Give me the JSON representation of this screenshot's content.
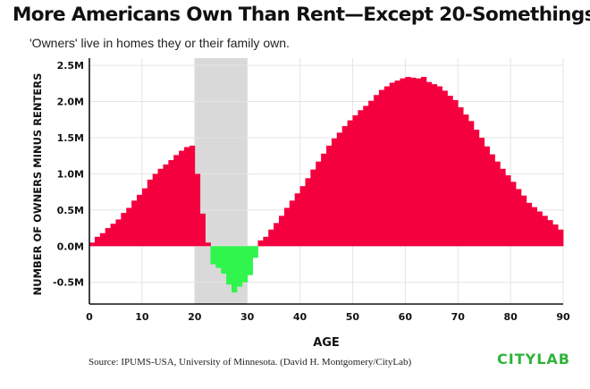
{
  "title": "More Americans Own Than Rent—Except 20-Somethings",
  "subtitle": "'Owners' live in homes they or their family own.",
  "source": "Source: IPUMS-USA, University of Minnesota. (David H. Montgomery/CityLab)",
  "logo": "CITYLAB",
  "colors": {
    "positive": "#f5003f",
    "negative": "#2ff54c",
    "highlight_band": "#d9d9d9",
    "grid": "#e4e4e4",
    "axis": "#111111",
    "logo": "#2fb33a"
  },
  "chart_data": {
    "type": "bar",
    "xlabel": "AGE",
    "ylabel": "NUMBER OF OWNERS MINUS RENTERS",
    "xlim": [
      0,
      90
    ],
    "ylim": [
      -0.8,
      2.6
    ],
    "xticks": [
      0,
      10,
      20,
      30,
      40,
      50,
      60,
      70,
      80,
      90
    ],
    "xtick_labels": [
      "0",
      "10",
      "20",
      "30",
      "40",
      "50",
      "60",
      "70",
      "80",
      "90"
    ],
    "yticks": [
      -0.5,
      0,
      0.5,
      1.0,
      1.5,
      2.0,
      2.5
    ],
    "ytick_labels": [
      "-0.5M",
      "0.0M",
      "0.5M",
      "1.0M",
      "1.5M",
      "2.0M",
      "2.5M"
    ],
    "highlight_range": [
      20,
      30
    ],
    "grid": true,
    "legend": "none",
    "unit": "millions",
    "x": [
      0,
      1,
      2,
      3,
      4,
      5,
      6,
      7,
      8,
      9,
      10,
      11,
      12,
      13,
      14,
      15,
      16,
      17,
      18,
      19,
      20,
      21,
      22,
      23,
      24,
      25,
      26,
      27,
      28,
      29,
      30,
      31,
      32,
      33,
      34,
      35,
      36,
      37,
      38,
      39,
      40,
      41,
      42,
      43,
      44,
      45,
      46,
      47,
      48,
      49,
      50,
      51,
      52,
      53,
      54,
      55,
      56,
      57,
      58,
      59,
      60,
      61,
      62,
      63,
      64,
      65,
      66,
      67,
      68,
      69,
      70,
      71,
      72,
      73,
      74,
      75,
      76,
      77,
      78,
      79,
      80,
      81,
      82,
      83,
      84,
      85,
      86,
      87,
      88,
      89
    ],
    "values": [
      0.05,
      0.13,
      0.18,
      0.25,
      0.31,
      0.37,
      0.46,
      0.53,
      0.63,
      0.71,
      0.8,
      0.92,
      1.0,
      1.07,
      1.13,
      1.19,
      1.26,
      1.32,
      1.37,
      1.39,
      1.0,
      0.45,
      0.05,
      -0.25,
      -0.3,
      -0.38,
      -0.53,
      -0.64,
      -0.56,
      -0.5,
      -0.4,
      -0.16,
      0.08,
      0.13,
      0.23,
      0.32,
      0.42,
      0.53,
      0.63,
      0.73,
      0.83,
      0.94,
      1.06,
      1.17,
      1.28,
      1.39,
      1.49,
      1.57,
      1.66,
      1.74,
      1.81,
      1.88,
      1.94,
      2.01,
      2.09,
      2.16,
      2.21,
      2.26,
      2.29,
      2.32,
      2.34,
      2.33,
      2.32,
      2.34,
      2.27,
      2.24,
      2.21,
      2.15,
      2.08,
      2.02,
      1.92,
      1.82,
      1.73,
      1.61,
      1.5,
      1.38,
      1.27,
      1.17,
      1.07,
      0.98,
      0.89,
      0.79,
      0.7,
      0.6,
      0.54,
      0.48,
      0.42,
      0.36,
      0.3,
      0.23
    ]
  }
}
